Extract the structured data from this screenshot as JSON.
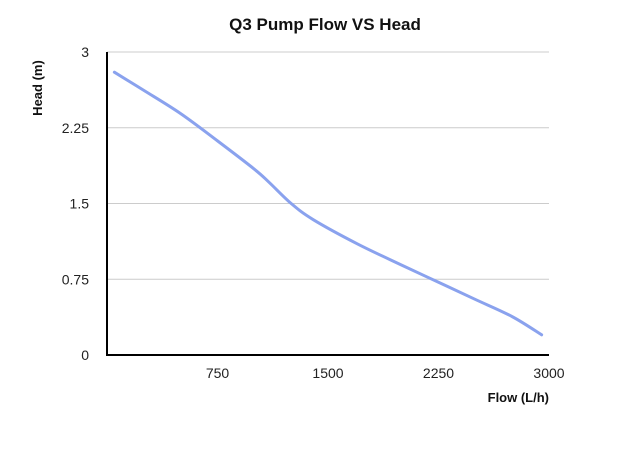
{
  "chart_data": {
    "type": "line",
    "title": "Q3 Pump Flow VS Head",
    "xlabel": "Flow (L/h)",
    "ylabel": "Head (m)",
    "xlim": [
      0,
      3000
    ],
    "ylim": [
      0,
      3
    ],
    "x_ticks": [
      750,
      1500,
      2250,
      3000
    ],
    "x_tick_labels": [
      "750",
      "1500",
      "2250",
      "3000"
    ],
    "y_ticks": [
      0,
      0.75,
      1.5,
      2.25,
      3
    ],
    "y_tick_labels": [
      "0",
      "0.75",
      "1.5",
      "2.25",
      "3"
    ],
    "grid": true,
    "legend": "none",
    "series": [
      {
        "color": "#8aa2ee",
        "x": [
          50,
          250,
          500,
          750,
          1000,
          1100,
          1250,
          1400,
          1700,
          2000,
          2250,
          2500,
          2750,
          2950
        ],
        "y": [
          2.8,
          2.62,
          2.39,
          2.12,
          1.84,
          1.71,
          1.5,
          1.34,
          1.1,
          0.89,
          0.72,
          0.55,
          0.38,
          0.2
        ]
      }
    ]
  }
}
